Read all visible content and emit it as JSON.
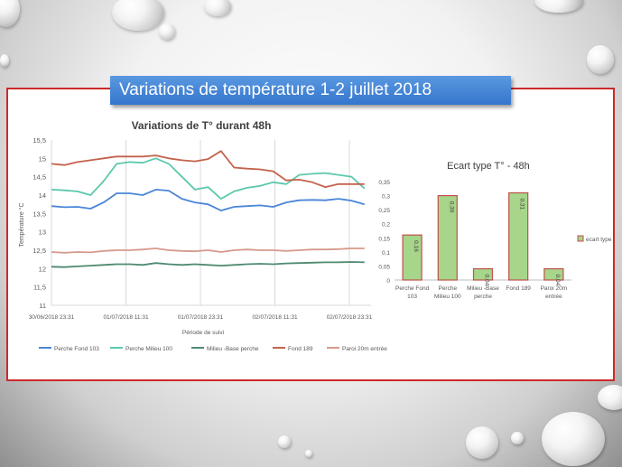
{
  "slide": {
    "title": "Variations de température 1-2 juillet 2018"
  },
  "colors": {
    "frame": "#cc2a2a",
    "banner": "#3f82d4",
    "series": [
      "#4a86d8",
      "#5cc8ac",
      "#4e8a70",
      "#c4624c",
      "#d69a8c"
    ],
    "bar_fill": "#a7d58a",
    "bar_stroke": "#c0504d"
  },
  "chart_data": [
    {
      "type": "line",
      "title": "Variations de T° durant 48h",
      "xlabel": "Période de suivi",
      "ylabel": "Température °C",
      "ylim": [
        11,
        15.5
      ],
      "yticks": [
        "15,5",
        "15",
        "14,5",
        "14",
        "13,5",
        "13",
        "12,5",
        "12",
        "11,5",
        "11"
      ],
      "xticks": [
        "30/06/2018 23:31",
        "01/07/2018 11:31",
        "01/07/2018 23:31",
        "02/07/2018 11:31",
        "02/07/2018 23:31"
      ],
      "xrange_hours": [
        0,
        49
      ],
      "grid": "vertical",
      "legend": "bottom",
      "series": [
        {
          "name": "Perche Fond 103",
          "x": [
            0,
            2,
            4,
            6,
            8,
            10,
            12,
            14,
            16,
            18,
            20,
            22,
            24,
            26,
            28,
            30,
            32,
            34,
            36,
            38,
            40,
            42,
            44,
            46,
            48
          ],
          "y": [
            13.7,
            13.67,
            13.68,
            13.63,
            13.8,
            14.05,
            14.05,
            14.0,
            14.15,
            14.12,
            13.9,
            13.8,
            13.75,
            13.58,
            13.68,
            13.7,
            13.72,
            13.68,
            13.8,
            13.86,
            13.87,
            13.86,
            13.9,
            13.85,
            13.75
          ]
        },
        {
          "name": "Perche Milieu  100",
          "x": [
            0,
            2,
            4,
            6,
            8,
            10,
            12,
            14,
            16,
            18,
            20,
            22,
            24,
            26,
            28,
            30,
            32,
            34,
            36,
            38,
            40,
            42,
            44,
            46,
            48
          ],
          "y": [
            14.15,
            14.13,
            14.1,
            14.0,
            14.38,
            14.85,
            14.9,
            14.88,
            15.0,
            14.85,
            14.5,
            14.15,
            14.22,
            13.9,
            14.1,
            14.2,
            14.25,
            14.35,
            14.3,
            14.55,
            14.58,
            14.6,
            14.55,
            14.5,
            14.18
          ]
        },
        {
          "name": "Milieu -Base perche",
          "x": [
            0,
            2,
            4,
            6,
            8,
            10,
            12,
            14,
            16,
            18,
            20,
            22,
            24,
            26,
            28,
            30,
            32,
            34,
            36,
            38,
            40,
            42,
            44,
            46,
            48
          ],
          "y": [
            12.05,
            12.04,
            12.06,
            12.08,
            12.1,
            12.12,
            12.12,
            12.1,
            12.15,
            12.12,
            12.1,
            12.12,
            12.1,
            12.08,
            12.1,
            12.12,
            12.13,
            12.12,
            12.14,
            12.15,
            12.16,
            12.17,
            12.17,
            12.18,
            12.17
          ]
        },
        {
          "name": "Fond 189",
          "x": [
            0,
            2,
            4,
            6,
            8,
            10,
            12,
            14,
            16,
            18,
            20,
            22,
            24,
            26,
            28,
            30,
            32,
            34,
            36,
            38,
            40,
            42,
            44,
            46,
            48
          ],
          "y": [
            14.85,
            14.82,
            14.9,
            14.95,
            15.0,
            15.05,
            15.05,
            15.05,
            15.08,
            15.0,
            14.95,
            14.92,
            14.98,
            15.2,
            14.75,
            14.72,
            14.7,
            14.65,
            14.4,
            14.42,
            14.35,
            14.22,
            14.3,
            14.3,
            14.3
          ]
        },
        {
          "name": "Paroi 20m entrée",
          "x": [
            0,
            2,
            4,
            6,
            8,
            10,
            12,
            14,
            16,
            18,
            20,
            22,
            24,
            26,
            28,
            30,
            32,
            34,
            36,
            38,
            40,
            42,
            44,
            46,
            48
          ],
          "y": [
            12.45,
            12.43,
            12.45,
            12.44,
            12.48,
            12.5,
            12.5,
            12.52,
            12.55,
            12.5,
            12.48,
            12.47,
            12.5,
            12.45,
            12.5,
            12.52,
            12.5,
            12.5,
            12.48,
            12.5,
            12.52,
            12.52,
            12.53,
            12.55,
            12.55
          ]
        }
      ]
    },
    {
      "type": "bar",
      "title": "Ecart type T° - 48h",
      "categories": [
        [
          "Perche Fond",
          "103"
        ],
        [
          "Perche",
          "Milieu  100"
        ],
        [
          "Milieu -Base",
          "perche"
        ],
        [
          "Fond 189"
        ],
        [
          "Paroi 20m",
          "entrée"
        ]
      ],
      "values": [
        0.16,
        0.3,
        0.04,
        0.31,
        0.04
      ],
      "data_labels": [
        "0,16",
        "0,30",
        "0,04",
        "0,31",
        "0,04"
      ],
      "ylim": [
        0,
        0.35
      ],
      "yticks": [
        "0,35",
        "0,3",
        "0,25",
        "0,2",
        "0,15",
        "0,1",
        "0,05",
        "0"
      ],
      "legend": "right",
      "series_name": "ecart type"
    }
  ]
}
